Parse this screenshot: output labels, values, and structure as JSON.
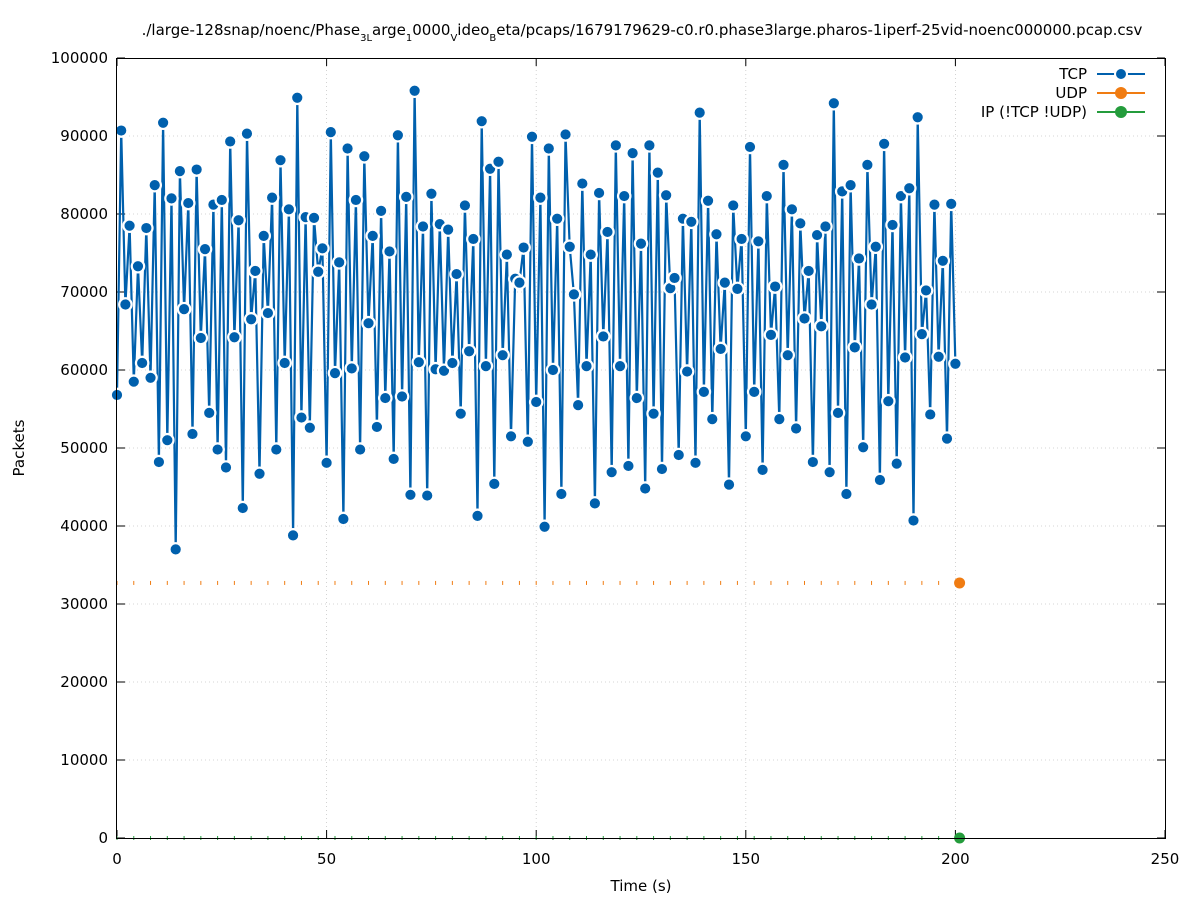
{
  "chart_data": {
    "type": "line",
    "title": "./large-128snap/noenc/Phase",
    "title_segments": [
      {
        "text": "./large-128snap/noenc/Phase",
        "sub": false
      },
      {
        "text": "3L",
        "sub": true
      },
      {
        "text": "arge",
        "sub": false
      },
      {
        "text": "1",
        "sub": true
      },
      {
        "text": "0000",
        "sub": false
      },
      {
        "text": "V",
        "sub": true
      },
      {
        "text": "ideo",
        "sub": false
      },
      {
        "text": "B",
        "sub": true
      },
      {
        "text": "eta/pcaps/1679179629-c0.r0.phase3large.pharos-1iperf-25vid-noenc000000.pcap.csv",
        "sub": false
      }
    ],
    "xlabel": "Time (s)",
    "ylabel": "Packets",
    "xlim": [
      0,
      250
    ],
    "ylim": [
      0,
      100000
    ],
    "xticks": [
      "0",
      "50",
      "100",
      "150",
      "200",
      "250"
    ],
    "yticks": [
      "0",
      "10000",
      "20000",
      "30000",
      "40000",
      "50000",
      "60000",
      "70000",
      "80000",
      "90000",
      "100000"
    ],
    "grid": true,
    "legend_position": "top-right",
    "series": [
      {
        "name": "TCP",
        "color": "#0060ad",
        "style": "line-points",
        "x": [
          0,
          1,
          2,
          3,
          4,
          5,
          6,
          7,
          8,
          9,
          10,
          11,
          12,
          13,
          14,
          15,
          16,
          17,
          18,
          19,
          20,
          21,
          22,
          23,
          24,
          25,
          26,
          27,
          28,
          29,
          30,
          31,
          32,
          33,
          34,
          35,
          36,
          37,
          38,
          39,
          40,
          41,
          42,
          43,
          44,
          45,
          46,
          47,
          48,
          49,
          50,
          51,
          52,
          53,
          54,
          55,
          56,
          57,
          58,
          59,
          60,
          61,
          62,
          63,
          64,
          65,
          66,
          67,
          68,
          69,
          70,
          71,
          72,
          73,
          74,
          75,
          76,
          77,
          78,
          79,
          80,
          81,
          82,
          83,
          84,
          85,
          86,
          87,
          88,
          89,
          90,
          91,
          92,
          93,
          94,
          95,
          96,
          97,
          98,
          99,
          100,
          101,
          102,
          103,
          104,
          105,
          106,
          107,
          108,
          109,
          110,
          111,
          112,
          113,
          114,
          115,
          116,
          117,
          118,
          119,
          120,
          121,
          122,
          123,
          124,
          125,
          126,
          127,
          128,
          129,
          130,
          131,
          132,
          133,
          134,
          135,
          136,
          137,
          138,
          139,
          140,
          141,
          142,
          143,
          144,
          145,
          146,
          147,
          148,
          149,
          150,
          151,
          152,
          153,
          154,
          155,
          156,
          157,
          158,
          159,
          160,
          161,
          162,
          163,
          164,
          165,
          166,
          167,
          168,
          169,
          170,
          171,
          172,
          173,
          174,
          175,
          176,
          177,
          178,
          179,
          180,
          181,
          182,
          183,
          184,
          185,
          186,
          187,
          188,
          189,
          190,
          191,
          192,
          193,
          194,
          195,
          196,
          197,
          198,
          199,
          200
        ],
        "values": [
          56800,
          90700,
          68400,
          78500,
          58500,
          73300,
          60900,
          78200,
          59000,
          83700,
          48200,
          91700,
          51000,
          82000,
          37000,
          85500,
          67800,
          81400,
          51800,
          85700,
          64100,
          75500,
          54500,
          81200,
          49800,
          81800,
          47500,
          89300,
          64200,
          79200,
          42300,
          90300,
          66500,
          72700,
          46700,
          77200,
          67300,
          82100,
          49800,
          86900,
          60900,
          80600,
          38800,
          94900,
          53900,
          79600,
          52600,
          79500,
          72600,
          75600,
          48100,
          90500,
          59600,
          73800,
          40900,
          88400,
          60200,
          81800,
          49800,
          87400,
          66000,
          77200,
          52700,
          80400,
          56400,
          75200,
          48600,
          90100,
          56600,
          82200,
          44000,
          95800,
          61000,
          78400,
          43900,
          82600,
          60100,
          78700,
          59900,
          78000,
          60900,
          72300,
          54400,
          81100,
          62400,
          76800,
          41300,
          91900,
          60500,
          85800,
          45400,
          86700,
          61900,
          74800,
          51500,
          71700,
          71200,
          75700,
          50800,
          89900,
          55900,
          82100,
          39900,
          88400,
          60000,
          79400,
          44100,
          90200,
          75800,
          69700,
          55500,
          83900,
          60500,
          74800,
          42900,
          82700,
          64300,
          77700,
          46900,
          88800,
          60500,
          82300,
          47700,
          87800,
          56400,
          76200,
          44800,
          88800,
          54400,
          85300,
          47300,
          82400,
          70500,
          71800,
          49100,
          79400,
          59800,
          79000,
          48100,
          93000,
          57200,
          81700,
          53700,
          77400,
          62700,
          71200,
          45300,
          81100,
          70400,
          76800,
          51500,
          88600,
          57200,
          76500,
          47200,
          82300,
          64500,
          70700,
          53700,
          86300,
          61900,
          80600,
          52500,
          78800,
          66600,
          72700,
          48200,
          77300,
          65600,
          78400,
          46900,
          94200,
          54500,
          82900,
          44100,
          83700,
          62900,
          74300,
          50100,
          86300,
          68400,
          75800,
          45900,
          89000,
          56000,
          78600,
          48000,
          82300,
          61600,
          83300,
          40700,
          92400,
          64600,
          70200,
          54300,
          81200,
          61700,
          74000,
          51200,
          81300,
          60800
        ]
      },
      {
        "name": "UDP",
        "color": "#f07c12",
        "style": "tick-marks",
        "value": 32700,
        "x_range": [
          0,
          201
        ],
        "last_point": {
          "x": 201,
          "y": 32700
        }
      },
      {
        "name": "IP (!TCP  !UDP)",
        "color": "#249c3c",
        "style": "tick-marks",
        "value": 0,
        "x_range": [
          0,
          201
        ],
        "last_point": {
          "x": 201,
          "y": 0
        }
      }
    ]
  }
}
